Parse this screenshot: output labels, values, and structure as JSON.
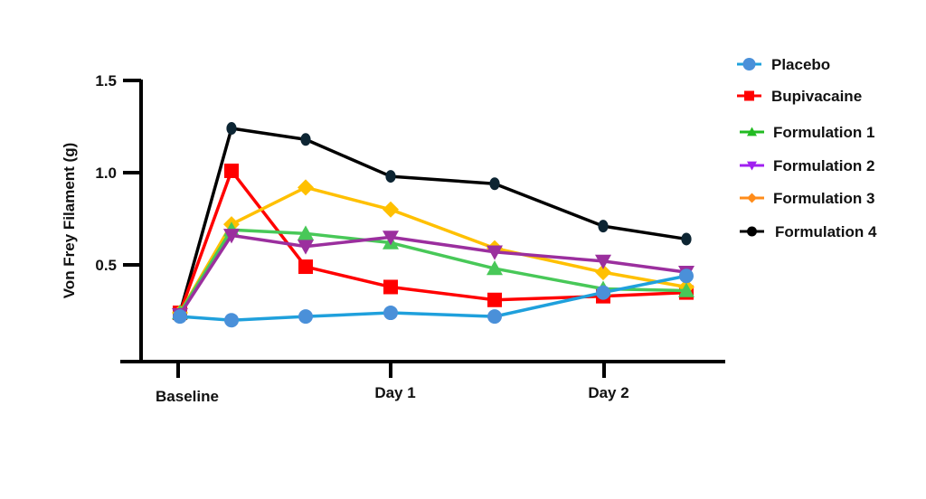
{
  "chart_data": {
    "type": "line",
    "title": "",
    "xlabel": "",
    "ylabel": "Von Frey Filament (g)",
    "ylim": [
      0,
      1.5
    ],
    "yticks": [
      0.5,
      1.0,
      1.5
    ],
    "ytick_labels": [
      "0.5",
      "1.0",
      "1.5"
    ],
    "xtick_labels": [
      "Baseline",
      "Day 1",
      "Day 2"
    ],
    "x_positions": [
      0,
      0.5,
      1.2,
      2,
      3,
      4,
      4.8
    ],
    "xtick_positions": [
      0,
      2,
      4
    ],
    "grid": false,
    "legend_position": "right",
    "series": [
      {
        "name": "Placebo",
        "color": "#1fa0dc",
        "marker_color": "#4a90d9",
        "marker": "circle",
        "values": [
          0.22,
          0.2,
          0.22,
          0.24,
          0.22,
          0.35,
          0.44
        ]
      },
      {
        "name": "Bupivacaine",
        "color": "#ff0000",
        "marker_color": "#ff0000",
        "marker": "square",
        "values": [
          0.24,
          1.01,
          0.49,
          0.38,
          0.31,
          0.33,
          0.35
        ]
      },
      {
        "name": "Formulation 1",
        "color": "#48c858",
        "marker_color": "#48c858",
        "marker": "triangle-up",
        "values": [
          0.24,
          0.69,
          0.67,
          0.62,
          0.48,
          0.37,
          0.36
        ]
      },
      {
        "name": "Formulation 2",
        "color": "#9b2f9e",
        "marker_color": "#9b2f9e",
        "marker": "triangle-down",
        "values": [
          0.23,
          0.66,
          0.6,
          0.65,
          0.57,
          0.52,
          0.46
        ]
      },
      {
        "name": "Formulation 3",
        "color": "#ffc000",
        "marker_color": "#ffc000",
        "marker": "diamond",
        "values": [
          0.24,
          0.72,
          0.92,
          0.8,
          0.59,
          0.46,
          0.38
        ]
      },
      {
        "name": "Formulation 4",
        "color": "#000000",
        "marker_color": "#0d2533",
        "marker": "circle-small",
        "values": [
          0.24,
          1.24,
          1.18,
          0.98,
          0.94,
          0.71,
          0.64
        ]
      }
    ]
  },
  "legend": {
    "items": [
      {
        "label": "Placebo",
        "color": "#4a90d9",
        "line": "#1fa0dc",
        "marker": "circle"
      },
      {
        "label": "Bupivacaine",
        "color": "#ff0000",
        "line": "#ff0000",
        "marker": "square"
      },
      {
        "label": "Formulation 1",
        "color": "#22bb22",
        "line": "#22bb22",
        "marker": "triangle-up"
      },
      {
        "label": "Formulation 2",
        "color": "#a020f0",
        "line": "#a020f0",
        "marker": "triangle-down"
      },
      {
        "label": "Formulation 3",
        "color": "#ff8c1a",
        "line": "#ff8c1a",
        "marker": "diamond"
      },
      {
        "label": "Formulation 4",
        "color": "#000000",
        "line": "#000000",
        "marker": "circle"
      }
    ]
  }
}
